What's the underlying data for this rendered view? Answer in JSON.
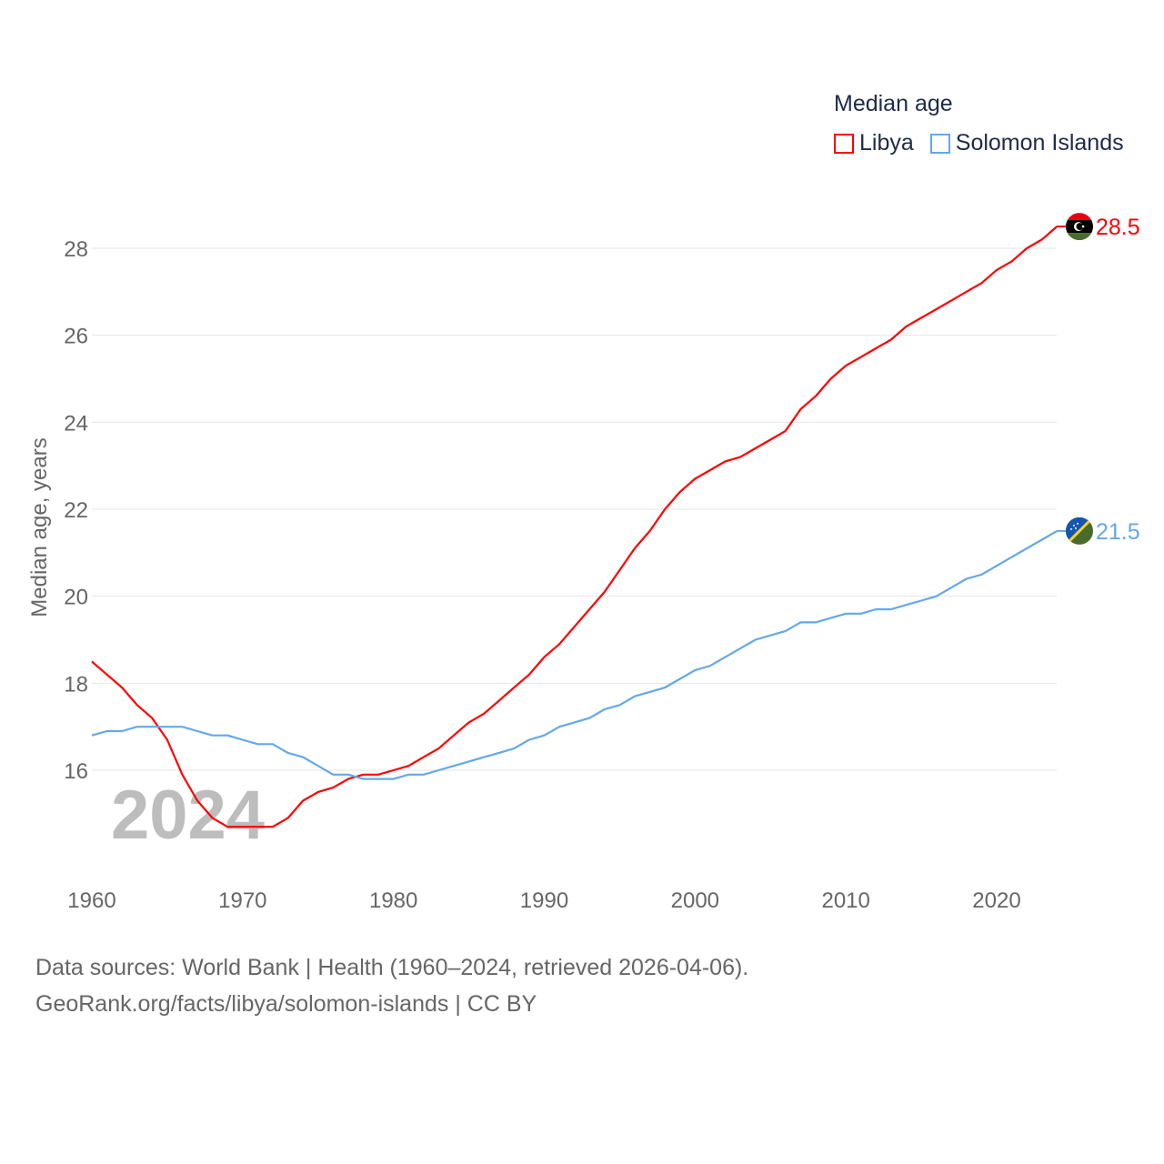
{
  "chart_data": {
    "type": "line",
    "title": "Median age",
    "ylabel": "Median age, years",
    "xlabel": "",
    "xlim": [
      1960,
      2024
    ],
    "ylim": [
      14,
      29
    ],
    "yticks": [
      16,
      18,
      20,
      22,
      24,
      26,
      28
    ],
    "xticks": [
      1960,
      1970,
      1980,
      1990,
      2000,
      2010,
      2020
    ],
    "grid": true,
    "legend_placement": "top-right",
    "year_watermark": "2024",
    "x": [
      1960,
      1961,
      1962,
      1963,
      1964,
      1965,
      1966,
      1967,
      1968,
      1969,
      1970,
      1971,
      1972,
      1973,
      1974,
      1975,
      1976,
      1977,
      1978,
      1979,
      1980,
      1981,
      1982,
      1983,
      1984,
      1985,
      1986,
      1987,
      1988,
      1989,
      1990,
      1991,
      1992,
      1993,
      1994,
      1995,
      1996,
      1997,
      1998,
      1999,
      2000,
      2001,
      2002,
      2003,
      2004,
      2005,
      2006,
      2007,
      2008,
      2009,
      2010,
      2011,
      2012,
      2013,
      2014,
      2015,
      2016,
      2017,
      2018,
      2019,
      2020,
      2021,
      2022,
      2023,
      2024
    ],
    "series": [
      {
        "name": "Libya",
        "color": "#ff0000",
        "end_label": "28.5",
        "flag": "libya-flag",
        "values": [
          18.5,
          18.2,
          17.9,
          17.5,
          17.2,
          16.7,
          15.9,
          15.3,
          14.9,
          14.7,
          14.7,
          14.7,
          14.7,
          14.9,
          15.3,
          15.5,
          15.6,
          15.8,
          15.9,
          15.9,
          16.0,
          16.1,
          16.3,
          16.5,
          16.8,
          17.1,
          17.3,
          17.6,
          17.9,
          18.2,
          18.6,
          18.9,
          19.3,
          19.7,
          20.1,
          20.6,
          21.1,
          21.5,
          22.0,
          22.4,
          22.7,
          22.9,
          23.1,
          23.2,
          23.4,
          23.6,
          23.8,
          24.3,
          24.6,
          25.0,
          25.3,
          25.5,
          25.7,
          25.9,
          26.2,
          26.4,
          26.6,
          26.8,
          27.0,
          27.2,
          27.5,
          27.7,
          28.0,
          28.2,
          28.5
        ]
      },
      {
        "name": "Solomon Islands",
        "color": "#63a8ea",
        "end_label": "21.5",
        "flag": "solomon-islands-flag",
        "values": [
          16.8,
          16.9,
          16.9,
          17.0,
          17.0,
          17.0,
          17.0,
          16.9,
          16.8,
          16.8,
          16.7,
          16.6,
          16.6,
          16.4,
          16.3,
          16.1,
          15.9,
          15.9,
          15.8,
          15.8,
          15.8,
          15.9,
          15.9,
          16.0,
          16.1,
          16.2,
          16.3,
          16.4,
          16.5,
          16.7,
          16.8,
          17.0,
          17.1,
          17.2,
          17.4,
          17.5,
          17.7,
          17.8,
          17.9,
          18.1,
          18.3,
          18.4,
          18.6,
          18.8,
          19.0,
          19.1,
          19.2,
          19.4,
          19.4,
          19.5,
          19.6,
          19.6,
          19.7,
          19.7,
          19.8,
          19.9,
          20.0,
          20.2,
          20.4,
          20.5,
          20.7,
          20.9,
          21.1,
          21.3,
          21.5
        ]
      }
    ]
  },
  "footer": {
    "line1": "Data sources: World Bank | Health (1960–2024, retrieved 2026-04-06).",
    "line2": "GeoRank.org/facts/libya/solomon-islands | CC BY"
  }
}
